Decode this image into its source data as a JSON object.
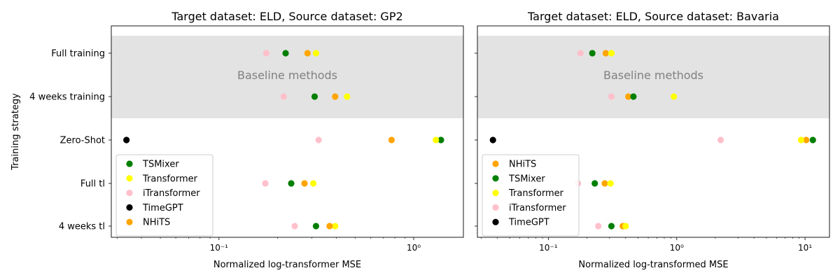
{
  "figure": {
    "ylabel": "Training strategy"
  },
  "chart_data": [
    {
      "type": "scatter",
      "title": "Target dataset: ELD, Source dataset: GP2",
      "xlabel": "Normalized log-transformer MSE",
      "xscale": "log",
      "xlim": [
        0.028,
        1.8
      ],
      "xticks": [
        {
          "value": 0.1,
          "label": "10⁻¹"
        },
        {
          "value": 1,
          "label": "10⁰"
        }
      ],
      "categories": [
        "Full training",
        "4 weeks training",
        "Zero-Shot",
        "Full tl",
        "4 weeks tl"
      ],
      "shaded_region": {
        "categories": [
          "Full training",
          "4 weeks training"
        ],
        "label": "Baseline methods",
        "color": "#e3e3e3"
      },
      "legend_position": "lower-left",
      "series": [
        {
          "name": "TSMixer",
          "color": "#007f00",
          "values": [
            0.22,
            0.31,
            1.38,
            0.235,
            0.315
          ]
        },
        {
          "name": "Transformer",
          "color": "#ffff00",
          "values": [
            0.315,
            0.455,
            1.3,
            0.305,
            0.395
          ]
        },
        {
          "name": "iTransformer",
          "color": "#ffc0cb",
          "values": [
            0.175,
            0.215,
            0.325,
            0.173,
            0.245
          ]
        },
        {
          "name": "TimeGPT",
          "color": "#000000",
          "values": [
            null,
            null,
            0.0335,
            null,
            null
          ]
        },
        {
          "name": "NHiTS",
          "color": "#ffa500",
          "values": [
            0.285,
            0.395,
            0.77,
            0.275,
            0.37
          ]
        }
      ]
    },
    {
      "type": "scatter",
      "title": "Target dataset: ELD, Source dataset: Bavaria",
      "xlabel": "Normalized log-transformed MSE",
      "xscale": "log",
      "xlim": [
        0.028,
        15.5
      ],
      "xticks": [
        {
          "value": 0.1,
          "label": "10⁻¹"
        },
        {
          "value": 1,
          "label": "10⁰"
        },
        {
          "value": 10,
          "label": "10¹"
        }
      ],
      "categories": [
        "Full training",
        "4 weeks training",
        "Zero-Shot",
        "Full tl",
        "4 weeks tl"
      ],
      "shaded_region": {
        "categories": [
          "Full training",
          "4 weeks training"
        ],
        "label": "Baseline methods",
        "color": "#e3e3e3"
      },
      "legend_position": "lower-left",
      "series": [
        {
          "name": "NHiTS",
          "color": "#ffa500",
          "values": [
            0.28,
            0.42,
            10.2,
            0.275,
            0.38
          ]
        },
        {
          "name": "TSMixer",
          "color": "#007f00",
          "values": [
            0.22,
            0.46,
            11.5,
            0.23,
            0.31
          ]
        },
        {
          "name": "Transformer",
          "color": "#ffff00",
          "values": [
            0.31,
            0.95,
            9.3,
            0.305,
            0.4
          ]
        },
        {
          "name": "iTransformer",
          "color": "#ffc0cb",
          "values": [
            0.178,
            0.31,
            2.2,
            0.17,
            0.245
          ]
        },
        {
          "name": "TimeGPT",
          "color": "#000000",
          "values": [
            null,
            null,
            0.037,
            null,
            null
          ]
        }
      ]
    }
  ]
}
